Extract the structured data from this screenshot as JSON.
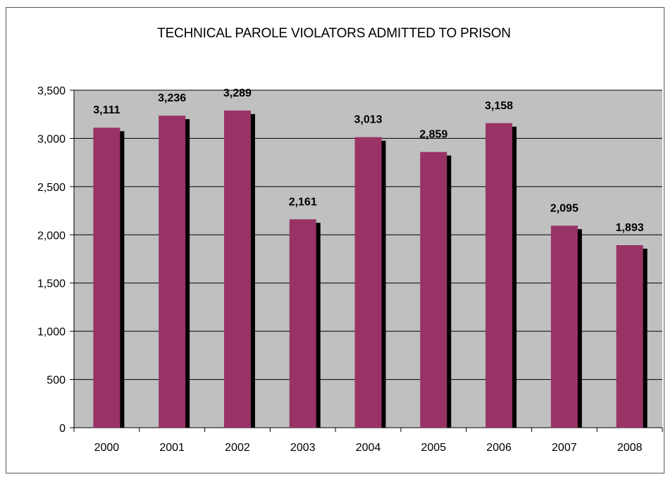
{
  "chart_data": {
    "type": "bar",
    "title": "TECHNICAL PAROLE VIOLATORS ADMITTED TO PRISON",
    "categories": [
      "2000",
      "2001",
      "2002",
      "2003",
      "2004",
      "2005",
      "2006",
      "2007",
      "2008"
    ],
    "values": [
      3111,
      3236,
      3289,
      2161,
      3013,
      2859,
      3158,
      2095,
      1893
    ],
    "data_labels": [
      "3,111",
      "3,236",
      "3,289",
      "2,161",
      "3,013",
      "2,859",
      "3,158",
      "2,095",
      "1,893"
    ],
    "ylim": [
      0,
      3500
    ],
    "yticks": [
      0,
      500,
      1000,
      1500,
      2000,
      2500,
      3000,
      3500
    ],
    "ytick_labels": [
      "0",
      "500",
      "1,000",
      "1,500",
      "2,000",
      "2,500",
      "3,000",
      "3,500"
    ],
    "xlabel": "",
    "ylabel": "",
    "grid": true,
    "legend": "none",
    "colors": {
      "bar": "#993366",
      "bar_shadow": "#000000",
      "plot_background": "#c0c0c0",
      "gridline": "#000000"
    }
  }
}
